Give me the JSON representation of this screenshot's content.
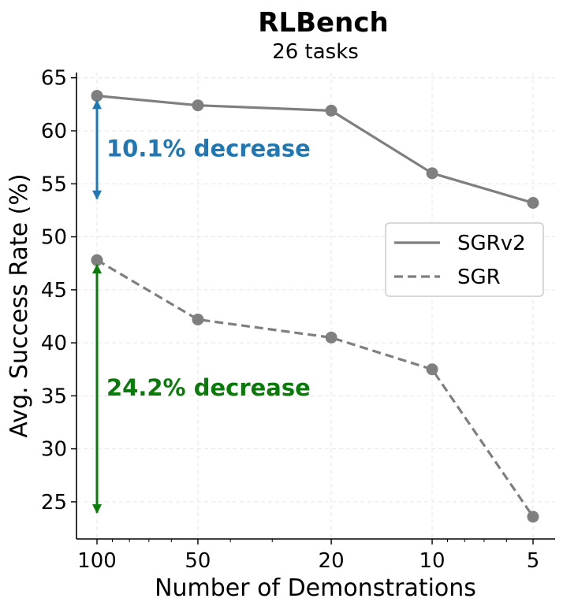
{
  "chart_data": {
    "type": "line",
    "title": "RLBench",
    "subtitle": "26 tasks",
    "xlabel": "Number of Demonstrations",
    "ylabel": "Avg. Success Rate (%)",
    "x_scale": "log",
    "x_direction": "decreasing",
    "x": [
      100,
      50,
      20,
      10,
      5
    ],
    "x_tick_labels": [
      "100",
      "50",
      "20",
      "10",
      "5"
    ],
    "ylim": [
      21.5,
      65.5
    ],
    "y_ticks": [
      25,
      30,
      35,
      40,
      45,
      50,
      55,
      60,
      65
    ],
    "grid": true,
    "legend_position": "center-right",
    "series": [
      {
        "name": "SGRv2",
        "values": [
          63.3,
          62.4,
          61.9,
          56.0,
          53.2
        ],
        "color": "#7f7f7f",
        "line_style": "solid"
      },
      {
        "name": "SGR",
        "values": [
          47.8,
          42.2,
          40.5,
          37.5,
          23.6
        ],
        "color": "#7f7f7f",
        "line_style": "dashed"
      }
    ],
    "annotations": [
      {
        "text": "10.1% decrease",
        "color": "#1f77b4",
        "x": 100,
        "y_from": 63.3,
        "y_to": 53.2
      },
      {
        "text": "24.2% decrease",
        "color": "#0a7a0a",
        "x": 100,
        "y_from": 47.8,
        "y_to": 23.6
      }
    ]
  }
}
